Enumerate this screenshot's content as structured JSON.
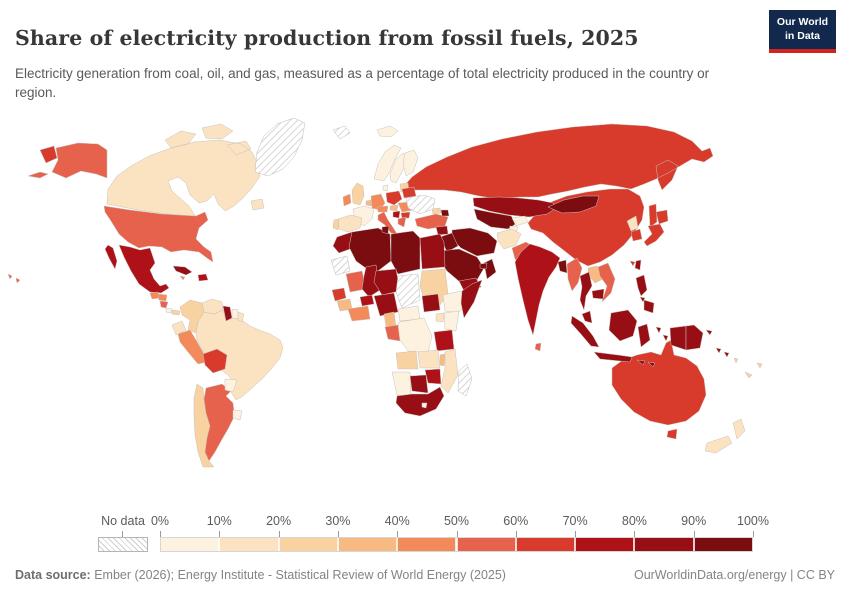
{
  "header": {
    "title": "Share of electricity production from fossil fuels, 2025",
    "subtitle": "Electricity generation from coal, oil, and gas, measured as a percentage of total electricity produced in the country or region.",
    "logo_line1": "Our World",
    "logo_line2": "in Data"
  },
  "theme": {
    "logo_bg": "#12294d",
    "logo_accent": "#cf2420",
    "border_color": "#c8c2bc",
    "nodata_border": "#bdbdbd"
  },
  "legend": {
    "no_data_label": "No data",
    "tick_labels": [
      "0%",
      "10%",
      "20%",
      "30%",
      "40%",
      "50%",
      "60%",
      "70%",
      "80%",
      "90%",
      "100%"
    ],
    "bin_labels": [
      "0-10%",
      "10-20%",
      "20-30%",
      "30-40%",
      "40-50%",
      "50-60%",
      "60-70%",
      "70-80%",
      "80-90%",
      "90-100%"
    ],
    "bin_colors": [
      "#fdf1e0",
      "#fbe3c2",
      "#f9d2a1",
      "#f7ba83",
      "#f28a59",
      "#e7624c",
      "#d83a2b",
      "#ae1117",
      "#970f14",
      "#7b0d11"
    ]
  },
  "footer": {
    "source_label": "Data source:",
    "source_text": " Ember (2026); Energy Institute - Statistical Review of World Energy (2025)",
    "right_link": "OurWorldinData.org/energy",
    "right_separator": " | ",
    "right_license": "CC BY"
  },
  "chart_data": {
    "type": "choropleth_map",
    "title": "Share of electricity production from fossil fuels",
    "year": 2025,
    "unit": "% of total electricity",
    "legend_bins": [
      "0-10%",
      "10-20%",
      "20-30%",
      "30-40%",
      "40-50%",
      "50-60%",
      "60-70%",
      "70-80%",
      "80-90%",
      "90-100%"
    ],
    "countries": [
      {
        "id": "canada",
        "name": "Canada",
        "bin": 1
      },
      {
        "id": "united-states",
        "name": "United States",
        "bin": 5
      },
      {
        "id": "greenland",
        "name": "Greenland",
        "bin": null
      },
      {
        "id": "russia",
        "name": "Russia",
        "bin": 6
      },
      {
        "id": "brazil",
        "name": "Brazil",
        "bin": 1
      },
      {
        "id": "china",
        "name": "China",
        "bin": 6
      },
      {
        "id": "australia",
        "name": "Australia",
        "bin": 6
      },
      {
        "id": "mexico",
        "name": "Mexico",
        "bin": 7
      },
      {
        "id": "guatemala",
        "name": "Guatemala",
        "bin": 4
      },
      {
        "id": "honduras",
        "name": "Honduras",
        "bin": 4
      },
      {
        "id": "nicaragua",
        "name": "Nicaragua",
        "bin": 5
      },
      {
        "id": "costa-rica",
        "name": "Costa Rica",
        "bin": 0
      },
      {
        "id": "panama",
        "name": "Panama",
        "bin": 2
      },
      {
        "id": "cuba",
        "name": "Cuba",
        "bin": 8
      },
      {
        "id": "hispaniola",
        "name": "Dominican Republic / Haiti",
        "bin": 7
      },
      {
        "id": "jamaica",
        "name": "Jamaica",
        "bin": 4
      },
      {
        "id": "colombia",
        "name": "Colombia",
        "bin": 2
      },
      {
        "id": "venezuela",
        "name": "Venezuela",
        "bin": 1
      },
      {
        "id": "guyana",
        "name": "Guyana",
        "bin": 8
      },
      {
        "id": "suriname",
        "name": "Suriname",
        "bin": 0
      },
      {
        "id": "french-guiana",
        "name": "French Guiana",
        "bin": 1
      },
      {
        "id": "ecuador",
        "name": "Ecuador",
        "bin": 1
      },
      {
        "id": "peru",
        "name": "Peru",
        "bin": 4
      },
      {
        "id": "chile",
        "name": "Chile",
        "bin": 2
      },
      {
        "id": "argentina",
        "name": "Argentina",
        "bin": 5
      },
      {
        "id": "bolivia",
        "name": "Bolivia",
        "bin": 6
      },
      {
        "id": "paraguay",
        "name": "Paraguay",
        "bin": 0
      },
      {
        "id": "uruguay",
        "name": "Uruguay",
        "bin": 0
      },
      {
        "id": "iceland",
        "name": "Iceland",
        "bin": 0
      },
      {
        "id": "svalbard",
        "name": "Svalbard",
        "bin": null
      },
      {
        "id": "norway",
        "name": "Norway",
        "bin": 0
      },
      {
        "id": "sweden",
        "name": "Sweden",
        "bin": 0
      },
      {
        "id": "finland",
        "name": "Finland",
        "bin": 0
      },
      {
        "id": "denmark",
        "name": "Denmark",
        "bin": 0
      },
      {
        "id": "baltics",
        "name": "Baltic states",
        "bin": 2
      },
      {
        "id": "united-kingdom",
        "name": "United Kingdom",
        "bin": 2
      },
      {
        "id": "ireland",
        "name": "Ireland",
        "bin": 4
      },
      {
        "id": "france",
        "name": "France",
        "bin": 0
      },
      {
        "id": "benelux",
        "name": "Netherlands",
        "bin": 3
      },
      {
        "id": "germany",
        "name": "Germany",
        "bin": 4
      },
      {
        "id": "poland",
        "name": "Poland",
        "bin": 6
      },
      {
        "id": "czechia-austria",
        "name": "Czechia / Austria",
        "bin": 4
      },
      {
        "id": "italy",
        "name": "Italy",
        "bin": 5
      },
      {
        "id": "spain",
        "name": "Spain",
        "bin": 1
      },
      {
        "id": "portugal",
        "name": "Portugal",
        "bin": 2
      },
      {
        "id": "hungary",
        "name": "Hungary",
        "bin": 3
      },
      {
        "id": "romania",
        "name": "Romania",
        "bin": 4
      },
      {
        "id": "serbia",
        "name": "Serbia",
        "bin": 7
      },
      {
        "id": "bulgaria",
        "name": "Bulgaria",
        "bin": 6
      },
      {
        "id": "greece",
        "name": "Greece",
        "bin": 5
      },
      {
        "id": "belarus",
        "name": "Belarus",
        "bin": 6
      },
      {
        "id": "ukraine",
        "name": "Ukraine",
        "bin": null
      },
      {
        "id": "turkey",
        "name": "Turkey",
        "bin": 5
      },
      {
        "id": "georgia",
        "name": "Georgia",
        "bin": 2
      },
      {
        "id": "azerbaijan",
        "name": "Azerbaijan",
        "bin": 9
      },
      {
        "id": "kazakhstan",
        "name": "Kazakhstan",
        "bin": 8
      },
      {
        "id": "uzbekistan-turkmenistan",
        "name": "Uzbekistan / Turkmenistan",
        "bin": 9
      },
      {
        "id": "kyrgyzstan",
        "name": "Kyrgyzstan",
        "bin": 0
      },
      {
        "id": "tajikistan",
        "name": "Tajikistan",
        "bin": 0
      },
      {
        "id": "afghanistan",
        "name": "Afghanistan",
        "bin": 1
      },
      {
        "id": "pakistan",
        "name": "Pakistan",
        "bin": 5
      },
      {
        "id": "iran",
        "name": "Iran",
        "bin": 9
      },
      {
        "id": "iraq",
        "name": "Iraq",
        "bin": 9
      },
      {
        "id": "syria",
        "name": "Syria",
        "bin": 8
      },
      {
        "id": "jordan-israel",
        "name": "Jordan / Israel",
        "bin": 9
      },
      {
        "id": "saudi-arabia",
        "name": "Saudi Arabia",
        "bin": 9
      },
      {
        "id": "yemen",
        "name": "Yemen",
        "bin": 8
      },
      {
        "id": "oman",
        "name": "Oman",
        "bin": 9
      },
      {
        "id": "uae",
        "name": "United Arab Emirates",
        "bin": 9
      },
      {
        "id": "morocco",
        "name": "Morocco",
        "bin": 8
      },
      {
        "id": "algeria",
        "name": "Algeria",
        "bin": 9
      },
      {
        "id": "tunisia",
        "name": "Tunisia",
        "bin": 9
      },
      {
        "id": "libya",
        "name": "Libya",
        "bin": 9
      },
      {
        "id": "egypt",
        "name": "Egypt",
        "bin": 8
      },
      {
        "id": "western-sahara",
        "name": "Western Sahara",
        "bin": null
      },
      {
        "id": "mauritania",
        "name": "Mauritania",
        "bin": 5
      },
      {
        "id": "mali",
        "name": "Mali",
        "bin": 8
      },
      {
        "id": "senegal",
        "name": "Senegal",
        "bin": 6
      },
      {
        "id": "guinea",
        "name": "Guinea",
        "bin": 3
      },
      {
        "id": "cote-divoire-ghana",
        "name": "Cote d'Ivoire / Ghana",
        "bin": 4
      },
      {
        "id": "burkina-faso",
        "name": "Burkina Faso",
        "bin": 7
      },
      {
        "id": "niger",
        "name": "Niger",
        "bin": 8
      },
      {
        "id": "nigeria",
        "name": "Nigeria",
        "bin": 8
      },
      {
        "id": "chad",
        "name": "Chad",
        "bin": null
      },
      {
        "id": "cameroon",
        "name": "Cameroon",
        "bin": 3
      },
      {
        "id": "central-african-republic",
        "name": "Central African Republic",
        "bin": 0
      },
      {
        "id": "sudan",
        "name": "Sudan",
        "bin": 2
      },
      {
        "id": "south-sudan",
        "name": "South Sudan",
        "bin": 8
      },
      {
        "id": "ethiopia",
        "name": "Ethiopia",
        "bin": 0
      },
      {
        "id": "somalia",
        "name": "Somalia",
        "bin": 8
      },
      {
        "id": "kenya",
        "name": "Kenya",
        "bin": 0
      },
      {
        "id": "uganda",
        "name": "Uganda",
        "bin": 1
      },
      {
        "id": "drc",
        "name": "Democratic Republic of Congo",
        "bin": 0
      },
      {
        "id": "gabon-congo",
        "name": "Gabon / Congo",
        "bin": 5
      },
      {
        "id": "tanzania",
        "name": "Tanzania",
        "bin": 7
      },
      {
        "id": "angola",
        "name": "Angola",
        "bin": 2
      },
      {
        "id": "zambia",
        "name": "Zambia",
        "bin": 1
      },
      {
        "id": "malawi",
        "name": "Malawi",
        "bin": 3
      },
      {
        "id": "mozambique",
        "name": "Mozambique",
        "bin": 1
      },
      {
        "id": "zimbabwe",
        "name": "Zimbabwe",
        "bin": 7
      },
      {
        "id": "botswana",
        "name": "Botswana",
        "bin": 8
      },
      {
        "id": "namibia",
        "name": "Namibia",
        "bin": 0
      },
      {
        "id": "south-africa",
        "name": "South Africa",
        "bin": 8
      },
      {
        "id": "lesotho",
        "name": "Lesotho",
        "bin": 0
      },
      {
        "id": "madagascar",
        "name": "Madagascar",
        "bin": null
      },
      {
        "id": "mongolia",
        "name": "Mongolia",
        "bin": 9
      },
      {
        "id": "nepal",
        "name": "Nepal",
        "bin": 0
      },
      {
        "id": "india",
        "name": "India",
        "bin": 7
      },
      {
        "id": "sri-lanka",
        "name": "Sri Lanka",
        "bin": 5
      },
      {
        "id": "bangladesh",
        "name": "Bangladesh",
        "bin": 9
      },
      {
        "id": "myanmar",
        "name": "Myanmar",
        "bin": 5
      },
      {
        "id": "laos",
        "name": "Laos",
        "bin": 3
      },
      {
        "id": "vietnam",
        "name": "Vietnam",
        "bin": 5
      },
      {
        "id": "thailand",
        "name": "Thailand",
        "bin": 8
      },
      {
        "id": "cambodia",
        "name": "Cambodia",
        "bin": 8
      },
      {
        "id": "malaysia",
        "name": "Malaysia",
        "bin": 8
      },
      {
        "id": "indonesia",
        "name": "Indonesia",
        "bin": 8
      },
      {
        "id": "philippines",
        "name": "Philippines",
        "bin": 8
      },
      {
        "id": "taiwan",
        "name": "Taiwan",
        "bin": 8
      },
      {
        "id": "north-korea",
        "name": "North Korea",
        "bin": 1
      },
      {
        "id": "south-korea",
        "name": "South Korea",
        "bin": 6
      },
      {
        "id": "japan",
        "name": "Japan",
        "bin": 6
      },
      {
        "id": "papua-new-guinea",
        "name": "Papua New Guinea",
        "bin": 8
      },
      {
        "id": "new-zealand",
        "name": "New Zealand",
        "bin": 1
      },
      {
        "id": "fiji",
        "name": "Fiji",
        "bin": 2
      },
      {
        "id": "new-caledonia",
        "name": "New Caledonia",
        "bin": 2
      },
      {
        "id": "solomon-islands",
        "name": "Solomon Islands",
        "bin": 8
      },
      {
        "id": "vanuatu",
        "name": "Vanuatu",
        "bin": 2
      }
    ]
  }
}
